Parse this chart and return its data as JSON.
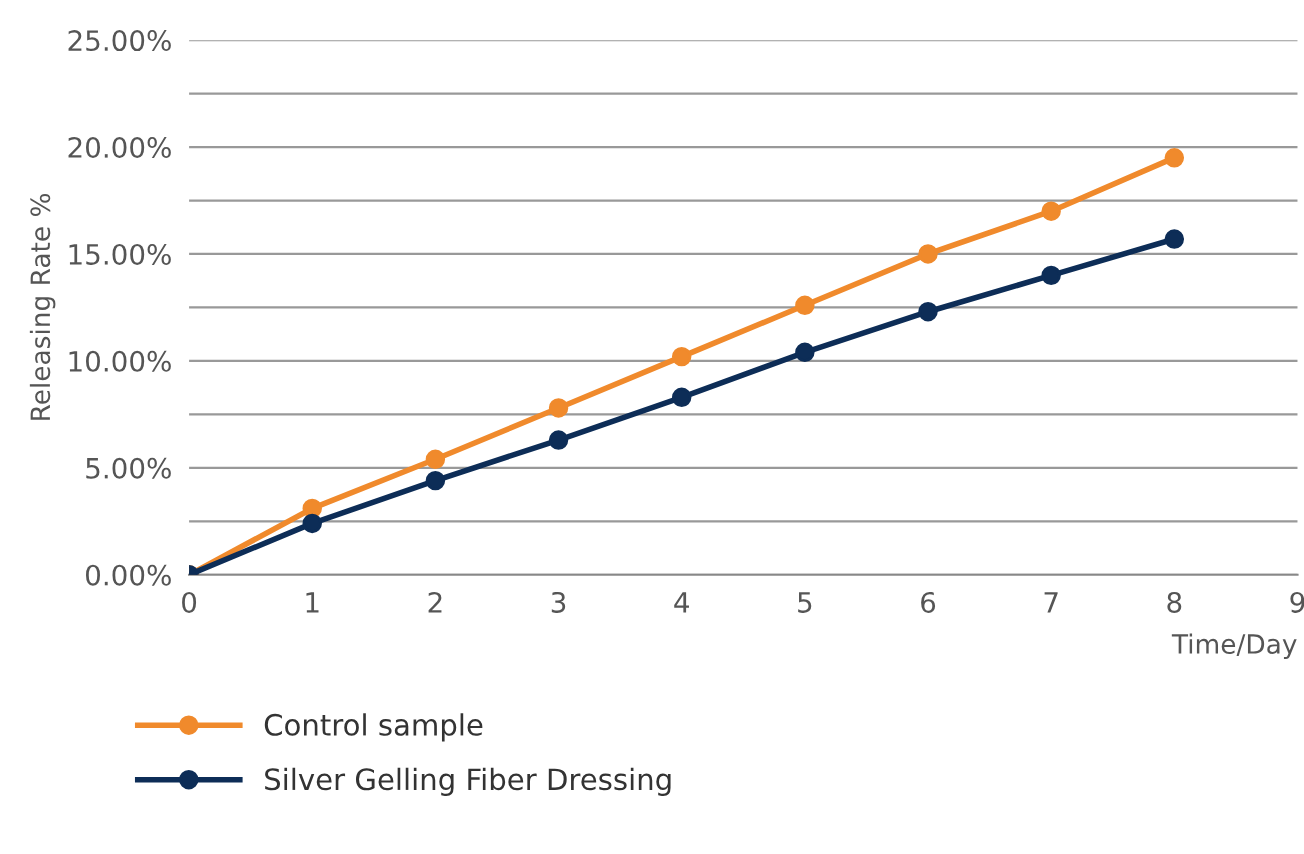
{
  "chart_data": {
    "type": "line",
    "xlabel": "Time/Day",
    "ylabel": "Releasing Rate %",
    "x": [
      0,
      1,
      2,
      3,
      4,
      5,
      6,
      7,
      8
    ],
    "series": [
      {
        "name": "Control sample",
        "color": "#f08a2c",
        "values": [
          0,
          3.1,
          5.4,
          7.8,
          10.2,
          12.6,
          15.0,
          17.0,
          19.5
        ]
      },
      {
        "name": "Silver Gelling Fiber Dressing",
        "color": "#0d2d57",
        "values": [
          0,
          2.4,
          4.4,
          6.3,
          8.3,
          10.4,
          12.3,
          14.0,
          15.7
        ]
      }
    ],
    "xlim": [
      0,
      9
    ],
    "xticks": [
      0,
      1,
      2,
      3,
      4,
      5,
      6,
      7,
      8,
      9
    ],
    "ylim": [
      0,
      25
    ],
    "yticks": [
      {
        "value": 0,
        "label": "0.00%"
      },
      {
        "value": 2.5,
        "label": null
      },
      {
        "value": 5,
        "label": "5.00%"
      },
      {
        "value": 7.5,
        "label": null
      },
      {
        "value": 10,
        "label": "10.00%"
      },
      {
        "value": 12.5,
        "label": null
      },
      {
        "value": 15,
        "label": "15.00%"
      },
      {
        "value": 17.5,
        "label": null
      },
      {
        "value": 20,
        "label": "20.00%"
      },
      {
        "value": 22.5,
        "label": null
      },
      {
        "value": 25,
        "label": "25.00%"
      }
    ],
    "grid": "y",
    "legend": "bottom left",
    "marker": "circle",
    "line_style": "solid"
  }
}
